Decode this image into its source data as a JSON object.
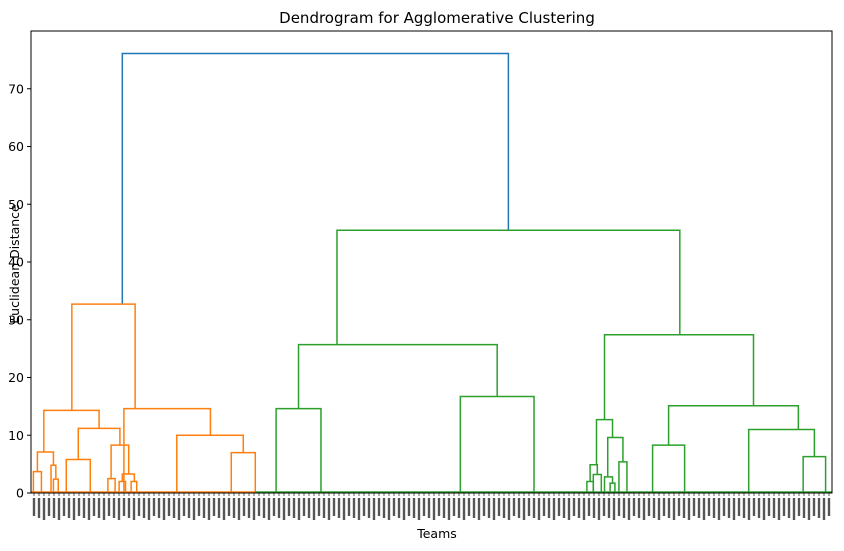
{
  "chart_data": {
    "type": "dendrogram",
    "title": "Dendrogram for Agglomerative Clustering",
    "xlabel": "Teams",
    "ylabel": "Euclidean Distance",
    "ylim": [
      0,
      80
    ],
    "yticks": [
      0,
      10,
      20,
      30,
      40,
      50,
      60,
      70
    ],
    "xlim": [
      0,
      100
    ],
    "grid": false,
    "colors": {
      "root": "#1f77b4",
      "cluster_1": "#ff7f0e",
      "cluster_2": "#2ca02c"
    },
    "merges": [
      {
        "color": "#1f77b4",
        "left": {
          "x": 11.4,
          "y": 32.7
        },
        "right": {
          "x": 59.6,
          "y": 45.5
        },
        "height": 76.1
      },
      {
        "color": "#ff7f0e",
        "left": {
          "x": 5.1,
          "y": 14.3
        },
        "right": {
          "x": 13.0,
          "y": 14.6
        },
        "height": 32.7
      },
      {
        "color": "#ff7f0e",
        "left": {
          "x": 1.6,
          "y": 7.1
        },
        "right": {
          "x": 8.5,
          "y": 11.2
        },
        "height": 14.3
      },
      {
        "color": "#ff7f0e",
        "left": {
          "x": 0.8,
          "y": 3.7
        },
        "right": {
          "x": 2.8,
          "y": 4.8
        },
        "height": 7.1
      },
      {
        "color": "#ff7f0e",
        "left": {
          "x": 0.3,
          "y": 0
        },
        "right": {
          "x": 1.3,
          "y": 0
        },
        "height": 3.7
      },
      {
        "color": "#ff7f0e",
        "left": {
          "x": 2.5,
          "y": 0
        },
        "right": {
          "x": 3.1,
          "y": 2.4
        },
        "height": 4.8
      },
      {
        "color": "#ff7f0e",
        "left": {
          "x": 2.8,
          "y": 0
        },
        "right": {
          "x": 3.4,
          "y": 0
        },
        "height": 2.4
      },
      {
        "color": "#ff7f0e",
        "left": {
          "x": 5.9,
          "y": 5.8
        },
        "right": {
          "x": 11.1,
          "y": 8.3
        },
        "height": 11.2
      },
      {
        "color": "#ff7f0e",
        "left": {
          "x": 4.4,
          "y": 0
        },
        "right": {
          "x": 7.4,
          "y": 0
        },
        "height": 5.8
      },
      {
        "color": "#ff7f0e",
        "left": {
          "x": 10.0,
          "y": 2.5
        },
        "right": {
          "x": 12.2,
          "y": 3.3
        },
        "height": 8.3
      },
      {
        "color": "#ff7f0e",
        "left": {
          "x": 9.6,
          "y": 0
        },
        "right": {
          "x": 10.5,
          "y": 0
        },
        "height": 2.5
      },
      {
        "color": "#ff7f0e",
        "left": {
          "x": 11.4,
          "y": 2.0
        },
        "right": {
          "x": 12.9,
          "y": 2.0
        },
        "height": 3.3
      },
      {
        "color": "#ff7f0e",
        "left": {
          "x": 11.0,
          "y": 0
        },
        "right": {
          "x": 11.8,
          "y": 0
        },
        "height": 2.0
      },
      {
        "color": "#ff7f0e",
        "left": {
          "x": 12.5,
          "y": 0
        },
        "right": {
          "x": 13.2,
          "y": 0
        },
        "height": 2.0
      },
      {
        "color": "#ff7f0e",
        "left": {
          "x": 11.6,
          "y": 0
        },
        "right": {
          "x": 22.4,
          "y": 10.0
        },
        "height": 14.6
      },
      {
        "color": "#ff7f0e",
        "left": {
          "x": 18.2,
          "y": 0
        },
        "right": {
          "x": 26.5,
          "y": 7.0
        },
        "height": 10.0
      },
      {
        "color": "#ff7f0e",
        "left": {
          "x": 25.0,
          "y": 0
        },
        "right": {
          "x": 28.0,
          "y": 0
        },
        "height": 7.0
      },
      {
        "color": "#2ca02c",
        "left": {
          "x": 38.2,
          "y": 25.7
        },
        "right": {
          "x": 81.0,
          "y": 27.4
        },
        "height": 45.5
      },
      {
        "color": "#2ca02c",
        "left": {
          "x": 33.4,
          "y": 14.6
        },
        "right": {
          "x": 58.2,
          "y": 16.7
        },
        "height": 25.7
      },
      {
        "color": "#2ca02c",
        "left": {
          "x": 30.6,
          "y": 0
        },
        "right": {
          "x": 36.2,
          "y": 0
        },
        "height": 14.6
      },
      {
        "color": "#2ca02c",
        "left": {
          "x": 53.6,
          "y": 0
        },
        "right": {
          "x": 62.8,
          "y": 0
        },
        "height": 16.7
      },
      {
        "color": "#2ca02c",
        "left": {
          "x": 71.6,
          "y": 12.7
        },
        "right": {
          "x": 90.2,
          "y": 15.1
        },
        "height": 27.4
      },
      {
        "color": "#2ca02c",
        "left": {
          "x": 70.6,
          "y": 4.9
        },
        "right": {
          "x": 72.6,
          "y": 9.6
        },
        "height": 12.7
      },
      {
        "color": "#2ca02c",
        "left": {
          "x": 69.8,
          "y": 2.0
        },
        "right": {
          "x": 70.7,
          "y": 3.2
        },
        "height": 4.9
      },
      {
        "color": "#2ca02c",
        "left": {
          "x": 69.4,
          "y": 0
        },
        "right": {
          "x": 70.2,
          "y": 0
        },
        "height": 2.0
      },
      {
        "color": "#2ca02c",
        "left": {
          "x": 70.2,
          "y": 0
        },
        "right": {
          "x": 71.2,
          "y": 0
        },
        "height": 3.2
      },
      {
        "color": "#2ca02c",
        "left": {
          "x": 72.0,
          "y": 2.8
        },
        "right": {
          "x": 73.9,
          "y": 5.4
        },
        "height": 9.6
      },
      {
        "color": "#2ca02c",
        "left": {
          "x": 71.6,
          "y": 0
        },
        "right": {
          "x": 72.6,
          "y": 1.7
        },
        "height": 2.8
      },
      {
        "color": "#2ca02c",
        "left": {
          "x": 72.3,
          "y": 0
        },
        "right": {
          "x": 72.9,
          "y": 0
        },
        "height": 1.7
      },
      {
        "color": "#2ca02c",
        "left": {
          "x": 73.4,
          "y": 0
        },
        "right": {
          "x": 74.4,
          "y": 0
        },
        "height": 5.4
      },
      {
        "color": "#2ca02c",
        "left": {
          "x": 79.6,
          "y": 8.3
        },
        "right": {
          "x": 95.8,
          "y": 11.0
        },
        "height": 15.1
      },
      {
        "color": "#2ca02c",
        "left": {
          "x": 77.6,
          "y": 0
        },
        "right": {
          "x": 81.6,
          "y": 0
        },
        "height": 8.3
      },
      {
        "color": "#2ca02c",
        "left": {
          "x": 89.6,
          "y": 0
        },
        "right": {
          "x": 97.8,
          "y": 6.3
        },
        "height": 11.0
      },
      {
        "color": "#2ca02c",
        "left": {
          "x": 96.4,
          "y": 0
        },
        "right": {
          "x": 99.2,
          "y": 0
        },
        "height": 6.3
      }
    ]
  }
}
